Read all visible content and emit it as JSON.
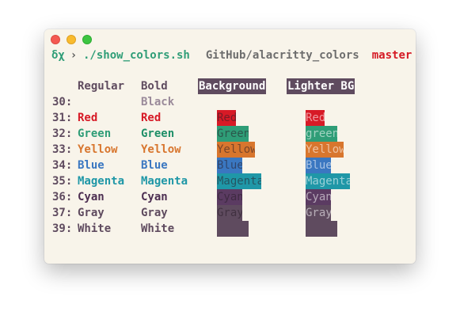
{
  "window": {
    "controls": {
      "close": "close",
      "minimize": "minimize",
      "maximize": "maximize"
    }
  },
  "prompt": {
    "symbol": "δχ",
    "arrow": "›",
    "command": "./show_colors.sh",
    "path": "GitHub/alacritty_colors",
    "branch": "master"
  },
  "headers": {
    "regular": "Regular",
    "bold": "Bold",
    "background": "Background",
    "lighter_bg": "Lighter BG"
  },
  "colors": {
    "accent": "#5f4b5f",
    "window_bg": "#f8f4ea"
  },
  "rows": [
    {
      "num": "30:",
      "regular": "",
      "bold": "Black",
      "reg_color": "#2c2c2c",
      "bold_color": "#9a8a9a",
      "bg": "",
      "lbg": "",
      "bg_color": "",
      "lbg_color": ""
    },
    {
      "num": "31:",
      "regular": "Red",
      "bold": "Red",
      "reg_color": "#d71a26",
      "bold_color": "#d71a26",
      "bg": "Red",
      "lbg": "Red",
      "bg_color": "#d71a26",
      "lbg_color": "#d71a26"
    },
    {
      "num": "32:",
      "regular": "Green",
      "bold": "Green",
      "reg_color": "#2f9d77",
      "bold_color": "#1f8f68",
      "bg": "Green",
      "lbg": "green",
      "bg_color": "#2f9d77",
      "lbg_color": "#2f9d77"
    },
    {
      "num": "33:",
      "regular": "Yellow",
      "bold": "Yellow",
      "reg_color": "#d8762e",
      "bold_color": "#d8762e",
      "bg": "Yellow",
      "lbg": "Yellow",
      "bg_color": "#d8762e",
      "lbg_color": "#d8762e"
    },
    {
      "num": "34:",
      "regular": "Blue",
      "bold": "Blue",
      "reg_color": "#3a77c1",
      "bold_color": "#3a77c1",
      "bg": "Blue",
      "lbg": "Blue",
      "bg_color": "#3a77c1",
      "lbg_color": "#3a77c1"
    },
    {
      "num": "35:",
      "regular": "Magenta",
      "bold": "Magenta",
      "reg_color": "#1f97a7",
      "bold_color": "#1f97a7",
      "bg": "Magenta",
      "lbg": "Magenta",
      "bg_color": "#1f97a7",
      "lbg_color": "#1f97a7"
    },
    {
      "num": "36:",
      "regular": "Cyan",
      "bold": "Cyan",
      "reg_color": "#4d2f52",
      "bold_color": "#4d2f52",
      "bg": "Cyan",
      "lbg": "Cyan",
      "bg_color": "#5b3b62",
      "lbg_color": "#5b3b62"
    },
    {
      "num": "37:",
      "regular": "Gray",
      "bold": "Gray",
      "reg_color": "#5f4b5f",
      "bold_color": "#5f4b5f",
      "bg": "Gray",
      "lbg": "Gray",
      "bg_color": "#5f4b5f",
      "lbg_color": "#5f4b5f"
    },
    {
      "num": "39:",
      "regular": "White",
      "bold": "White",
      "reg_color": "#5f4b5f",
      "bold_color": "#5f4b5f",
      "bg": "",
      "lbg": "",
      "bg_color": "#5f4b5f",
      "lbg_color": "#5f4b5f"
    }
  ]
}
